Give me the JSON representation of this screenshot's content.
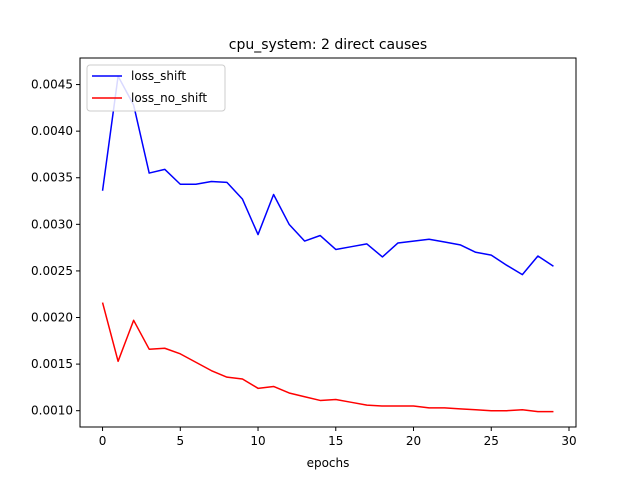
{
  "chart_data": {
    "type": "line",
    "title": "cpu_system: 2 direct causes",
    "xlabel": "epochs",
    "ylabel": "",
    "xlim": [
      -1.45,
      30.45
    ],
    "ylim": [
      0.000825,
      0.004785
    ],
    "xticks": [
      0,
      5,
      10,
      15,
      20,
      25,
      30
    ],
    "xtick_labels": [
      "0",
      "5",
      "10",
      "15",
      "20",
      "25",
      "30"
    ],
    "yticks": [
      0.001,
      0.0015,
      0.002,
      0.0025,
      0.003,
      0.0035,
      0.004,
      0.0045
    ],
    "ytick_labels": [
      "0.0010",
      "0.0015",
      "0.0020",
      "0.0025",
      "0.0030",
      "0.0035",
      "0.0040",
      "0.0045"
    ],
    "grid": false,
    "legend_position": "top-left",
    "x": [
      0,
      1,
      2,
      3,
      4,
      5,
      6,
      7,
      8,
      9,
      10,
      11,
      12,
      13,
      14,
      15,
      16,
      17,
      18,
      19,
      20,
      21,
      22,
      23,
      24,
      25,
      26,
      27,
      28,
      29
    ],
    "series": [
      {
        "name": "loss_shift",
        "color": "#0000ff",
        "values": [
          0.00336,
          0.00459,
          0.00428,
          0.00355,
          0.00359,
          0.00343,
          0.00343,
          0.00346,
          0.00345,
          0.00327,
          0.00289,
          0.00332,
          0.003,
          0.00282,
          0.00288,
          0.00273,
          0.00276,
          0.00279,
          0.00265,
          0.0028,
          0.00282,
          0.00284,
          0.00281,
          0.00278,
          0.0027,
          0.00267,
          0.00256,
          0.00246,
          0.00266,
          0.00255
        ]
      },
      {
        "name": "loss_no_shift",
        "color": "#ff0000",
        "values": [
          0.00216,
          0.00153,
          0.00197,
          0.00166,
          0.00167,
          0.00161,
          0.00152,
          0.00143,
          0.00136,
          0.00134,
          0.00124,
          0.00126,
          0.00119,
          0.00115,
          0.00111,
          0.00112,
          0.00109,
          0.00106,
          0.00105,
          0.00105,
          0.00105,
          0.00103,
          0.00103,
          0.00102,
          0.00101,
          0.001,
          0.001,
          0.00101,
          0.00099,
          0.00099
        ]
      }
    ]
  }
}
